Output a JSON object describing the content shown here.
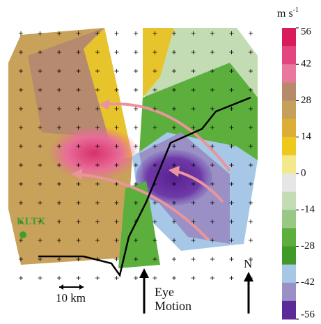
{
  "colorbar": {
    "unit": "m s",
    "unit_exponent": "-1",
    "ticks": [
      56,
      42,
      28,
      14,
      0,
      -14,
      -28,
      -42,
      -56
    ],
    "colors": [
      "#d81b5a",
      "#e3457e",
      "#e9799c",
      "#b88a6c",
      "#c6a05a",
      "#dcae38",
      "#eec81c",
      "#f2e98a",
      "#e6e6e6",
      "#c4dcb4",
      "#98c884",
      "#5caf3c",
      "#3f9a2a",
      "#a6c8e6",
      "#9a90c6",
      "#5c2a98"
    ]
  },
  "labels": {
    "radar": "KLTX",
    "scale": "10 km",
    "eye_motion": "Eye\nMotion",
    "north": "N"
  }
}
